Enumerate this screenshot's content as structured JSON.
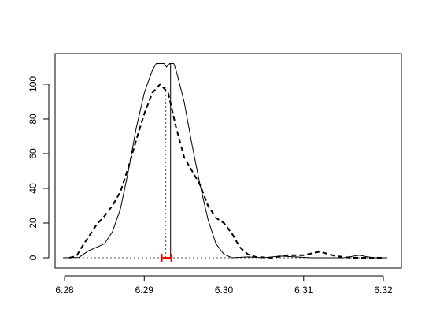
{
  "chart_data": {
    "type": "density",
    "xlim": [
      6.27881,
      6.32227
    ],
    "ylim": [
      -5.9,
      117.7
    ],
    "xticks": [
      6.28,
      6.29,
      {
        "value": 6.3,
        "label": "6.30"
      },
      6.31,
      6.32
    ],
    "yticks": [
      0,
      20,
      40,
      60,
      80,
      100
    ],
    "series": [
      {
        "style": "solid",
        "color": "#000000",
        "x": [
          6.2798,
          6.2818,
          6.283,
          6.285,
          6.286,
          6.287,
          6.288,
          6.289,
          6.29,
          6.291,
          6.2915,
          6.2925,
          6.2928,
          6.2932,
          6.2937,
          6.294,
          6.295,
          6.296,
          6.297,
          6.298,
          6.299,
          6.3,
          6.301,
          6.303,
          6.305,
          6.307,
          6.309,
          6.311,
          6.313,
          6.315,
          6.317,
          6.318,
          6.319,
          6.3205
        ],
        "values": [
          0,
          0.2,
          4,
          8,
          15,
          28,
          50,
          75,
          95,
          108,
          112,
          112,
          110,
          112,
          112,
          108,
          90,
          65,
          42,
          22,
          8,
          2,
          0,
          0.5,
          0,
          1,
          0.5,
          0,
          0,
          0,
          1.5,
          0.5,
          0,
          0
        ]
      },
      {
        "style": "dashed",
        "color": "#000000",
        "x": [
          6.2806,
          6.2815,
          6.282,
          6.283,
          6.284,
          6.285,
          6.286,
          6.287,
          6.288,
          6.289,
          6.29,
          6.291,
          6.292,
          6.293,
          6.294,
          6.295,
          6.296,
          6.297,
          6.298,
          6.299,
          6.3,
          6.301,
          6.302,
          6.303,
          6.304,
          6.306,
          6.308,
          6.31,
          6.312,
          6.314,
          6.316,
          6.318,
          6.32
        ],
        "values": [
          0,
          1,
          5,
          12,
          19,
          24,
          30,
          38,
          52,
          68,
          83,
          95,
          100,
          95,
          75,
          58,
          50,
          42,
          30,
          23,
          20,
          14,
          6,
          2,
          0.5,
          0,
          1.5,
          1.5,
          3.5,
          1,
          0,
          0,
          0
        ]
      }
    ],
    "vlines": [
      {
        "x": 6.2933,
        "y": 112,
        "style": "solid",
        "color": "#000000"
      },
      {
        "x": 6.2927,
        "y": 98,
        "style": "dotted",
        "color": "#555555"
      }
    ],
    "hline": {
      "y": 0,
      "style": "dotted",
      "color": "#555555"
    },
    "errorbar": {
      "x": 6.2928,
      "error": 0.0006,
      "y": 0,
      "color": "#ff0000"
    }
  }
}
